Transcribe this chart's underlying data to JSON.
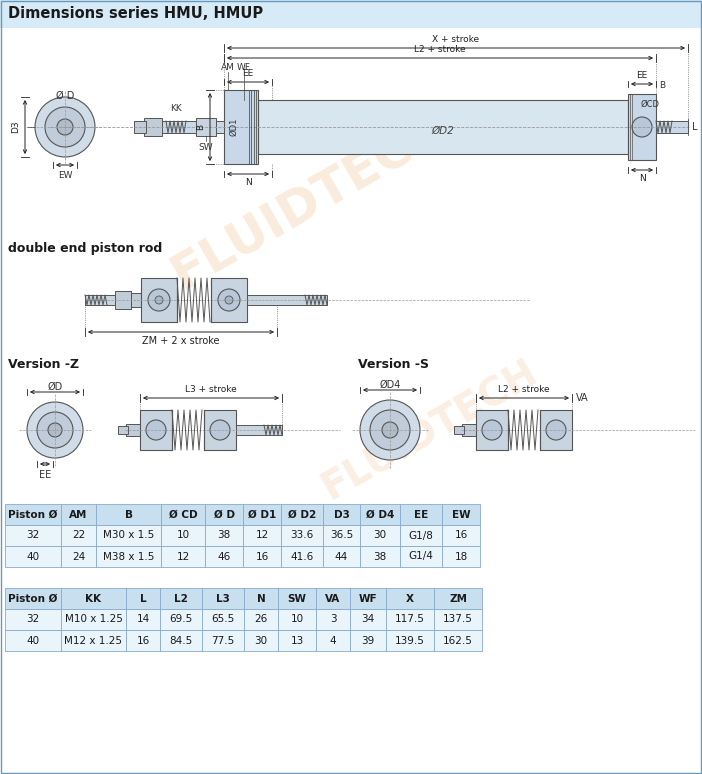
{
  "title": "Dimensions series HMU, HMUP",
  "title_bg": "#d6eaf8",
  "bg_color": "#ffffff",
  "table1_headers": [
    "Piston Ø",
    "AM",
    "B",
    "Ø CD",
    "Ø D",
    "Ø D1",
    "Ø D2",
    "D3",
    "Ø D4",
    "EE",
    "EW"
  ],
  "table1_rows": [
    [
      "32",
      "22",
      "M30 x 1.5",
      "10",
      "38",
      "12",
      "33.6",
      "36.5",
      "30",
      "G1/8",
      "16"
    ],
    [
      "40",
      "24",
      "M38 x 1.5",
      "12",
      "46",
      "16",
      "41.6",
      "44",
      "38",
      "G1/4",
      "18"
    ]
  ],
  "table2_headers": [
    "Piston Ø",
    "KK",
    "L",
    "L2",
    "L3",
    "N",
    "SW",
    "VA",
    "WF",
    "X",
    "ZM"
  ],
  "table2_rows": [
    [
      "32",
      "M10 x 1.25",
      "14",
      "69.5",
      "65.5",
      "26",
      "10",
      "3",
      "34",
      "117.5",
      "137.5"
    ],
    [
      "40",
      "M12 x 1.25",
      "16",
      "84.5",
      "77.5",
      "30",
      "13",
      "4",
      "39",
      "139.5",
      "162.5"
    ]
  ],
  "table_header_bg": "#c8dff0",
  "table_row_bg": "#eaf4fb",
  "table_alt_bg": "#eaf4fb",
  "label_double_end": "double end piston rod",
  "label_version_z": "Version -Z",
  "label_version_s": "Version -S",
  "dim_label_zm": "ZM + 2 x stroke",
  "dim_label_l3": "L3 + stroke",
  "dim_label_l2s": "L2 + stroke",
  "watermark_color": "#f0c090",
  "col_w1": [
    56,
    35,
    65,
    44,
    38,
    38,
    42,
    37,
    40,
    42,
    38
  ],
  "col_w2": [
    56,
    65,
    34,
    42,
    42,
    34,
    38,
    34,
    36,
    48,
    48
  ]
}
